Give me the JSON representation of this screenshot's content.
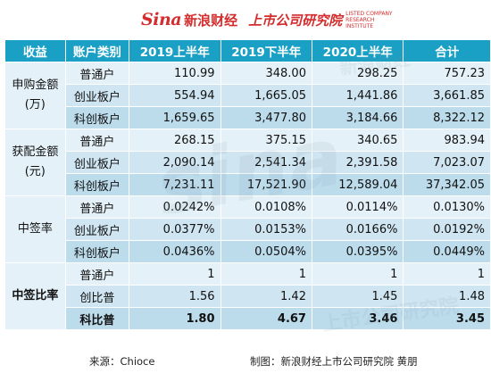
{
  "brand": {
    "mark": "Sina",
    "name": "新浪财经",
    "institute": "上市公司研究院",
    "tagline": "LISTED COMPANY RESEARCH INSTITUTE"
  },
  "watermarks": [
    "新浪财经",
    "上市公司研究院",
    "sina"
  ],
  "table": {
    "headers": [
      "收益",
      "账户类别",
      "2019上半年",
      "2019下半年",
      "2020上半年",
      "合计"
    ],
    "groups": [
      {
        "label_lines": [
          "申购金额",
          "(万)"
        ],
        "rows": [
          {
            "account": "普通户",
            "values": [
              "110.99",
              "348.00",
              "298.25",
              "757.23"
            ]
          },
          {
            "account": "创业板户",
            "values": [
              "554.94",
              "1,665.05",
              "1,441.86",
              "3,661.85"
            ]
          },
          {
            "account": "科创板户",
            "values": [
              "1,659.65",
              "3,477.80",
              "3,184.66",
              "8,322.12"
            ]
          }
        ]
      },
      {
        "label_lines": [
          "获配金额",
          "(元)"
        ],
        "rows": [
          {
            "account": "普通户",
            "values": [
              "268.15",
              "375.15",
              "340.65",
              "983.94"
            ]
          },
          {
            "account": "创业板户",
            "values": [
              "2,090.14",
              "2,541.34",
              "2,391.58",
              "7,023.07"
            ]
          },
          {
            "account": "科创板户",
            "values": [
              "7,231.11",
              "17,521.90",
              "12,589.04",
              "37,342.05"
            ]
          }
        ]
      },
      {
        "label_lines": [
          "中签率"
        ],
        "rows": [
          {
            "account": "普通户",
            "values": [
              "0.0242%",
              "0.0108%",
              "0.0114%",
              "0.0130%"
            ]
          },
          {
            "account": "创业板户",
            "values": [
              "0.0377%",
              "0.0153%",
              "0.0166%",
              "0.0192%"
            ]
          },
          {
            "account": "科创板户",
            "values": [
              "0.0436%",
              "0.0504%",
              "0.0395%",
              "0.0449%"
            ]
          }
        ]
      },
      {
        "label_lines": [
          "中签比率"
        ],
        "rows": [
          {
            "account": "普通户",
            "values": [
              "1",
              "1",
              "1",
              "1"
            ]
          },
          {
            "account": "创比普",
            "values": [
              "1.56",
              "1.42",
              "1.45",
              "1.48"
            ]
          },
          {
            "account": "科比普",
            "values": [
              "1.80",
              "4.67",
              "3.46",
              "3.45"
            ],
            "highlight": true
          }
        ]
      }
    ]
  },
  "footer": {
    "source": "来源：Chioce",
    "credit": "制图：新浪财经上市公司研究院  黄朋"
  },
  "colors": {
    "header_bg": "#1aa0c4",
    "accent_red": "#e02020",
    "row_light": "#e4f1f8",
    "row_mid": "#cfe5f1",
    "row_dark": "#bcdcec"
  }
}
